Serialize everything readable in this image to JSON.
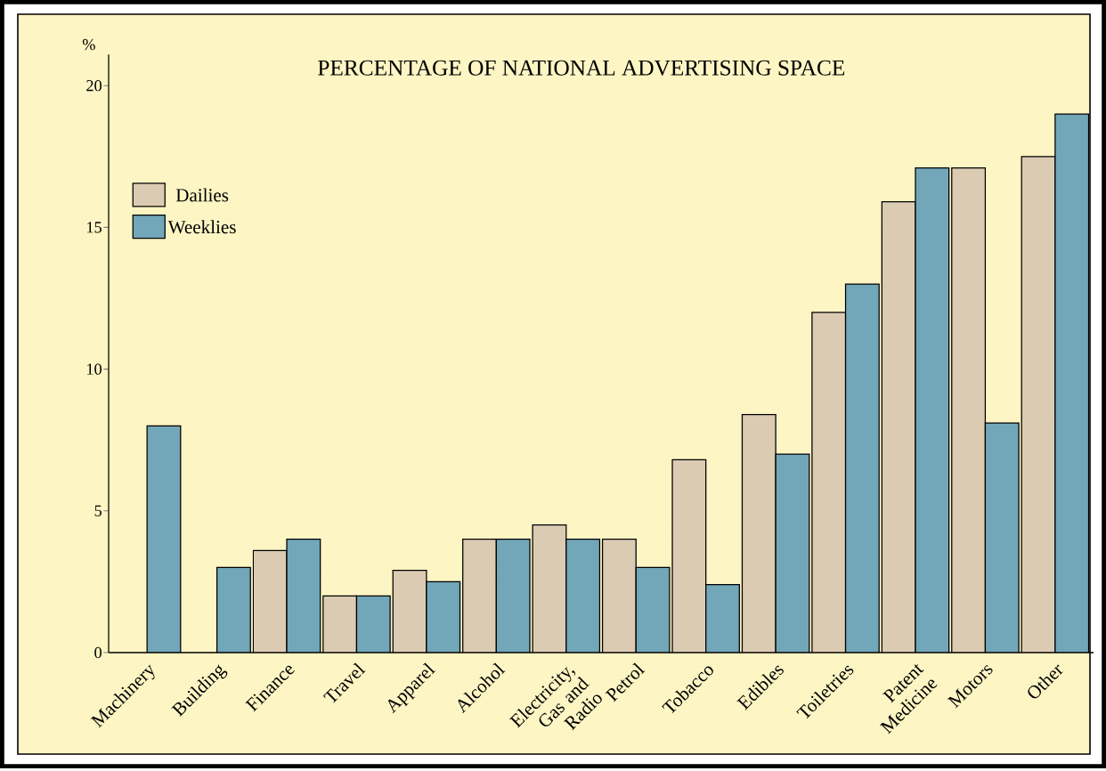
{
  "chart_data": {
    "type": "bar",
    "title": "PERCENTAGE OF NATIONAL ADVERTISING SPACE",
    "ylabel": "%",
    "categories": [
      "Machinery",
      "Building",
      "Finance",
      "Travel",
      "Apparel",
      "Alcohol",
      "Electricity, Gas and Radio",
      "Petrol",
      "Tobacco",
      "Edibles",
      "Toiletries",
      "Patent Medicine",
      "Motors",
      "Other"
    ],
    "series": [
      {
        "name": "Dailies",
        "color": "#dccbb3",
        "values": [
          null,
          null,
          3.6,
          2,
          2.9,
          4,
          4.5,
          4,
          6.8,
          8.4,
          12,
          15.9,
          17.1,
          17.5
        ]
      },
      {
        "name": "Weeklies",
        "color": "#72a6b9",
        "values": [
          8,
          3,
          4,
          2,
          2.5,
          4,
          4,
          3,
          2.4,
          7,
          13,
          17.1,
          8.1,
          19
        ]
      }
    ],
    "ylim": [
      0,
      21.1
    ],
    "yticks": [
      0,
      5,
      10,
      15,
      20
    ],
    "legend": "top left"
  }
}
